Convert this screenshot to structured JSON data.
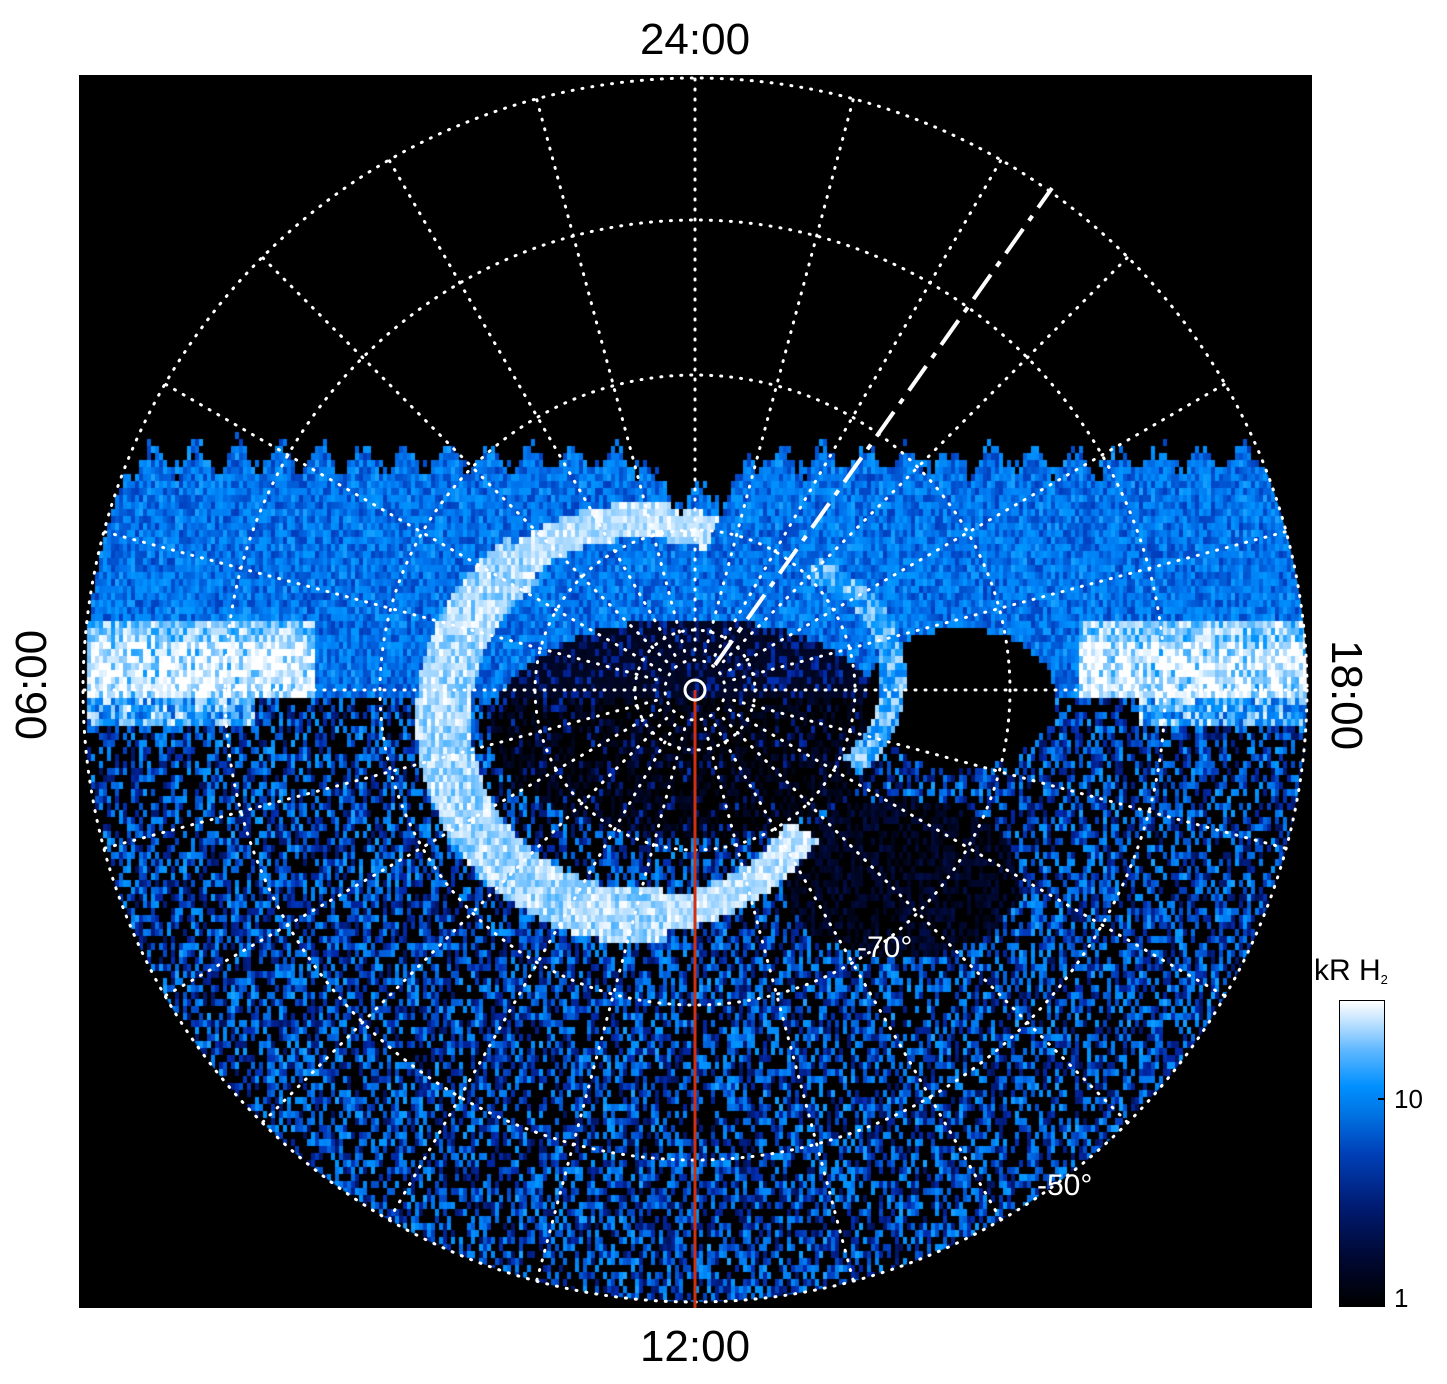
{
  "chart_data": {
    "type": "heatmap",
    "projection": "polar",
    "title": "",
    "local_time_labels": {
      "top": "24:00",
      "bottom": "12:00",
      "left": "06:00",
      "right": "18:00"
    },
    "latitude_labels": [
      "-70°",
      "-50°"
    ],
    "latitude_rings_deg": [
      -80,
      -70,
      -60,
      -50
    ],
    "meridian_step_hours": 1,
    "colorbar": {
      "label": "kR H",
      "label_subscript": "2",
      "scale": "log",
      "range": [
        1,
        30
      ],
      "tick_labels": [
        "10",
        "1"
      ],
      "ticks": [
        10,
        1
      ]
    },
    "colors": {
      "background": "#000000",
      "grid": "#ffffff",
      "red_line": "#d03010",
      "low": "#000000",
      "mid": "#0090ff",
      "high": "#ffffff"
    }
  }
}
